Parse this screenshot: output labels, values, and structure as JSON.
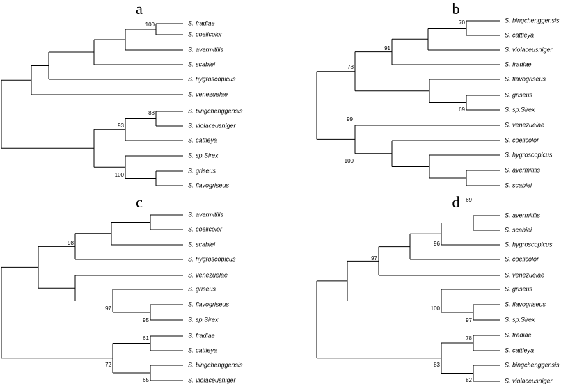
{
  "panels": [
    {
      "label": "a",
      "leaves": [
        "S. fradiae",
        "S. coelicolor",
        "S. avermitilis",
        "S. scabiei",
        "S. hygroscopicus",
        "S. venezuelae",
        "S. bingchenggensis",
        "S. violaceusniger",
        "S. cattleya",
        "S. sp.Sirex",
        "S. griseus",
        "S. flavogriseus"
      ],
      "bootstrap": [
        100,
        88,
        93,
        100
      ]
    },
    {
      "label": "b",
      "leaves": [
        "S. bingchenggensis",
        "S. cattleya",
        "S. violaceusniger",
        "S. fradiae",
        "S. flavogriseus",
        "S. griseus",
        "S. sp.Sirex",
        "S. venezuelae",
        "S. coelicolor",
        "S. hygroscopicus",
        "S. avermitilis",
        "S. scabiei"
      ],
      "bootstrap": [
        70,
        91,
        78,
        69,
        99,
        100
      ]
    },
    {
      "label": "c",
      "leaves": [
        "S. avermitilis",
        "S. coelicolor",
        "S. scabiei",
        "S. hygroscopicus",
        "S. venezuelae",
        "S. griseus",
        "S. flavogriseus",
        "S. sp.Sirex",
        "S. fradiae",
        "S. cattleya",
        "S. bingchenggensis",
        "S. violaceusniger"
      ],
      "bootstrap": [
        98,
        95,
        97,
        61,
        65,
        72
      ]
    },
    {
      "label": "d",
      "leaves": [
        "S. avermitilis",
        "S. scabiei",
        "S. hygroscopicus",
        "S. coelicolor",
        "S. venezuelae",
        "S. griseus",
        "S. flavogriseus",
        "S. sp.Sirex",
        "S. fradiae",
        "S. cattleya",
        "S. bingchenggensis",
        "S. violaceusniger"
      ],
      "bootstrap": [
        69,
        96,
        97,
        97,
        100,
        78,
        82,
        83
      ]
    }
  ]
}
